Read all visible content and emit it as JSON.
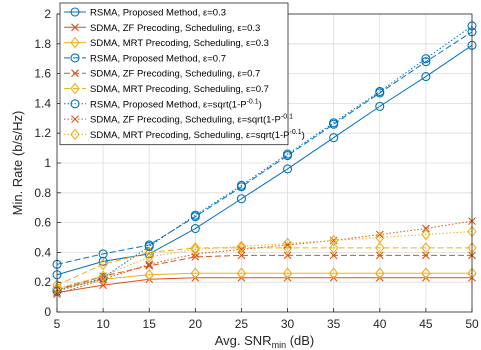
{
  "chart_data": {
    "type": "line",
    "title": "",
    "xlabel": "Avg. SNR",
    "xlabel_sub": "min",
    "xlabel_unit": " (dB)",
    "ylabel": "Min. Rate (b/s/Hz)",
    "xlim": [
      5,
      50
    ],
    "ylim": [
      0,
      2
    ],
    "xticks": [
      5,
      10,
      15,
      20,
      25,
      30,
      35,
      40,
      45,
      50
    ],
    "yticks": [
      0,
      0.2,
      0.4,
      0.6,
      0.8,
      1,
      1.2,
      1.4,
      1.6,
      1.8,
      2
    ],
    "grid": true,
    "legend_position": "top-left",
    "x": [
      5,
      10,
      15,
      20,
      25,
      30,
      35,
      40,
      45,
      50
    ],
    "series": [
      {
        "name": "RSMA, Proposed Method,",
        "eps": "ε=0.3",
        "color": "#0072BD",
        "marker": "circle",
        "dash": "solid",
        "values": [
          0.25,
          0.34,
          0.39,
          0.56,
          0.76,
          0.96,
          1.17,
          1.38,
          1.58,
          1.79
        ]
      },
      {
        "name": "SDMA, ZF Precoding, Scheduling,",
        "eps": "ε=0.3",
        "color": "#D95319",
        "marker": "x",
        "dash": "solid",
        "values": [
          0.13,
          0.18,
          0.22,
          0.23,
          0.23,
          0.23,
          0.23,
          0.23,
          0.23,
          0.23
        ]
      },
      {
        "name": "SDMA, MRT Precoding, Scheduling,",
        "eps": "ε=0.3",
        "color": "#EDB120",
        "marker": "diamond",
        "dash": "solid",
        "values": [
          0.15,
          0.22,
          0.25,
          0.26,
          0.26,
          0.26,
          0.26,
          0.26,
          0.26,
          0.26
        ]
      },
      {
        "name": "RSMA, Proposed Method,",
        "eps": "ε=0.7",
        "color": "#0072BD",
        "marker": "circle",
        "dash": "dashed",
        "values": [
          0.32,
          0.39,
          0.45,
          0.64,
          0.84,
          1.05,
          1.26,
          1.47,
          1.68,
          1.88
        ]
      },
      {
        "name": "SDMA, ZF Precoding, Scheduling,",
        "eps": "ε=0.7",
        "color": "#D95319",
        "marker": "x",
        "dash": "dashed",
        "values": [
          0.15,
          0.24,
          0.31,
          0.37,
          0.38,
          0.38,
          0.38,
          0.38,
          0.38,
          0.38
        ]
      },
      {
        "name": "SDMA, MRT Precoding, Scheduling,",
        "eps": "ε=0.7",
        "color": "#EDB120",
        "marker": "diamond",
        "dash": "dashed",
        "values": [
          0.18,
          0.32,
          0.4,
          0.43,
          0.43,
          0.43,
          0.43,
          0.43,
          0.43,
          0.43
        ]
      },
      {
        "name": "RSMA, Proposed Method,",
        "eps": "ε=sqrt(1-P",
        "eps_sup": "-0.1",
        "eps_tail": ")",
        "color": "#0072BD",
        "marker": "circle",
        "dash": "dotted",
        "values": [
          0.14,
          0.23,
          0.44,
          0.65,
          0.85,
          1.06,
          1.27,
          1.48,
          1.7,
          1.92
        ]
      },
      {
        "name": "SDMA, ZF Precoding, Scheduling,",
        "eps": "ε=sqrt(1-P",
        "eps_sup": "-0.1",
        "eps_tail": "",
        "color": "#D95319",
        "marker": "x",
        "dash": "dotted",
        "values": [
          0.12,
          0.22,
          0.32,
          0.39,
          0.42,
          0.45,
          0.48,
          0.52,
          0.56,
          0.61
        ]
      },
      {
        "name": "SDMA, MRT Precoding, Scheduling,",
        "eps": "ε=sqrt(1-P",
        "eps_sup": "-0.1",
        "eps_tail": ")",
        "color": "#EDB120",
        "marker": "diamond",
        "dash": "dotted",
        "values": [
          0.16,
          0.24,
          0.37,
          0.42,
          0.44,
          0.46,
          0.48,
          0.5,
          0.52,
          0.54
        ]
      }
    ]
  }
}
